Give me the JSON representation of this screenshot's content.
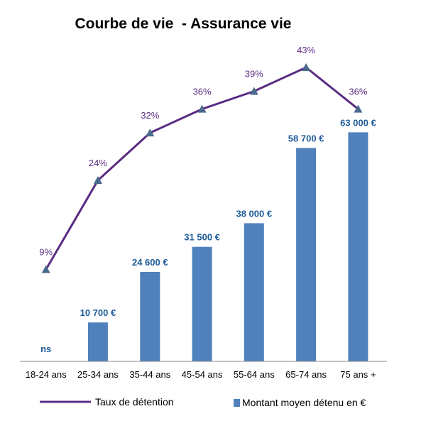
{
  "chart_data": {
    "type": "bar",
    "title": "Courbe de vie  - Assurance vie",
    "xlabel": "",
    "ylabel": "",
    "grid": false,
    "legend_position": "bottom",
    "categories": [
      "18-24 ans",
      "25-34 ans",
      "35-44 ans",
      "45-54 ans",
      "55-64 ans",
      "65-74 ans",
      "75 ans +"
    ],
    "series": [
      {
        "name": "Montant moyen détenu en €",
        "type": "bar",
        "color": "#4F81BD",
        "label_color": "#1F5C99",
        "values": [
          null,
          10700,
          24600,
          31500,
          38000,
          58700,
          63000
        ],
        "labels": [
          "ns",
          "10 700 €",
          "24 600 €",
          "31 500 €",
          "38 000 €",
          "58 700 €",
          "63 000 €"
        ]
      },
      {
        "name": "Taux de détention",
        "type": "line",
        "color": "#5B2C83",
        "marker_color": "#4A6A8C",
        "values": [
          9,
          24,
          32,
          36,
          39,
          43,
          36
        ],
        "labels": [
          "9%",
          "24%",
          "32%",
          "36%",
          "39%",
          "43%",
          "36%"
        ]
      }
    ]
  }
}
